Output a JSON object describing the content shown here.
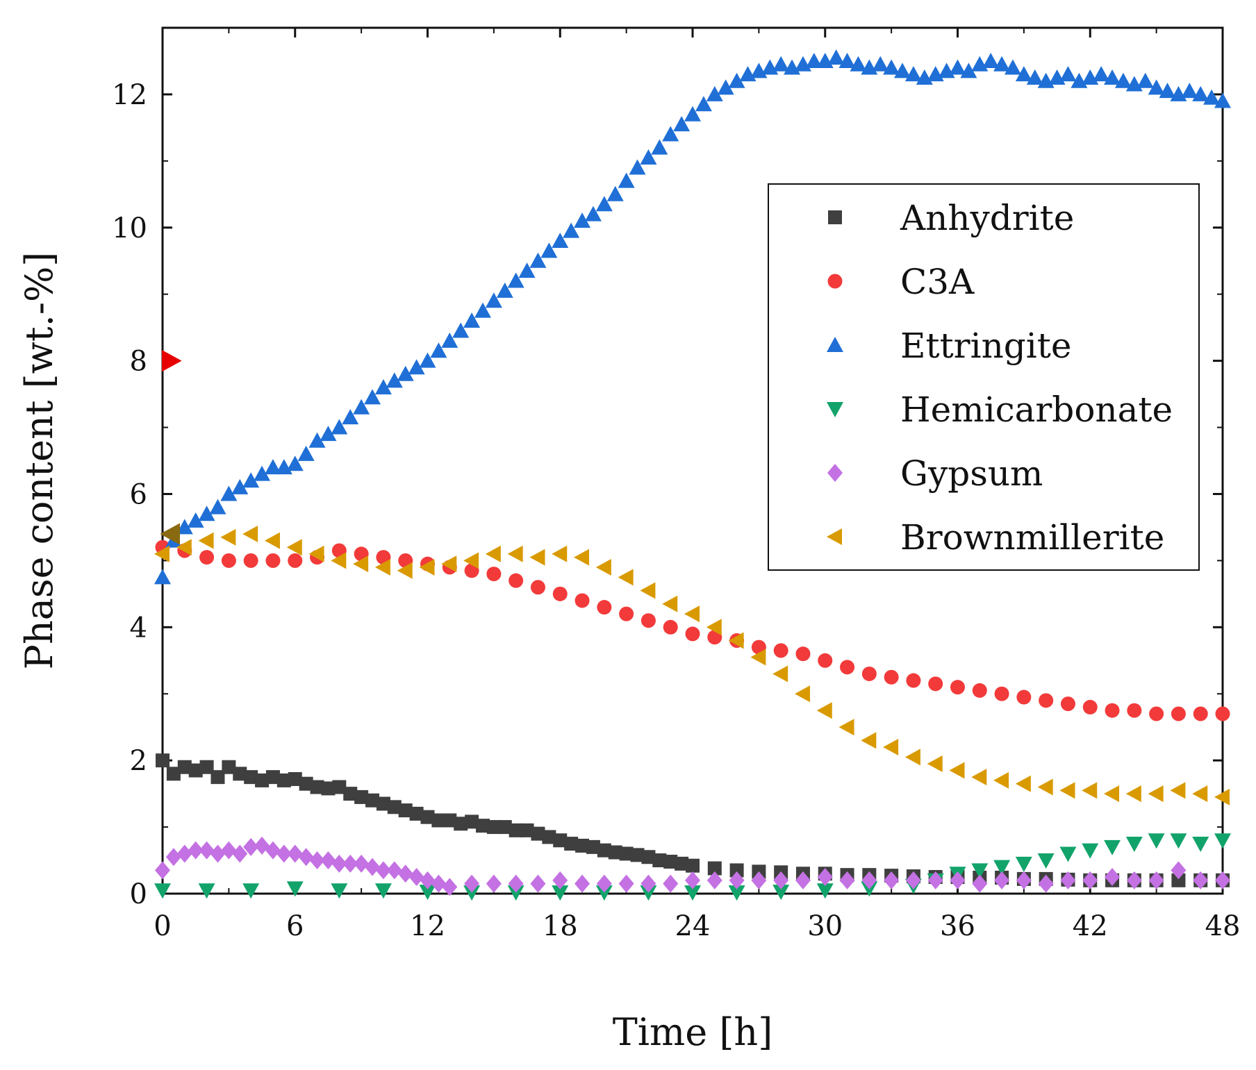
{
  "chart_data": {
    "type": "scatter",
    "title": "",
    "xlabel": "Time [h]",
    "ylabel": "Phase content [wt.-%]",
    "xlim": [
      0,
      48
    ],
    "ylim": [
      0,
      13
    ],
    "xticks": [
      "0",
      "6",
      "12",
      "18",
      "24",
      "30",
      "36",
      "42",
      "48"
    ],
    "yticks": [
      "0",
      "2",
      "4",
      "6",
      "8",
      "10",
      "12"
    ],
    "grid": false,
    "legend_position": "right",
    "series": [
      {
        "name": "Anhydrite",
        "color": "#3f3f3f",
        "marker": "square",
        "x": [
          0,
          0.5,
          1,
          1.5,
          2,
          2.5,
          3,
          3.5,
          4,
          4.5,
          5,
          5.5,
          6,
          6.5,
          7,
          7.5,
          8,
          8.5,
          9,
          9.5,
          10,
          10.5,
          11,
          11.5,
          12,
          12.5,
          13,
          13.5,
          14,
          14.5,
          15,
          15.5,
          16,
          16.5,
          17,
          17.5,
          18,
          18.5,
          19,
          19.5,
          20,
          20.5,
          21,
          21.5,
          22,
          22.5,
          23,
          23.5,
          24,
          25,
          26,
          27,
          28,
          29,
          30,
          31,
          32,
          33,
          34,
          35,
          36,
          37,
          38,
          39,
          40,
          41,
          42,
          43,
          44,
          45,
          46,
          47,
          48
        ],
        "y": [
          2.0,
          1.8,
          1.9,
          1.85,
          1.9,
          1.75,
          1.9,
          1.8,
          1.75,
          1.7,
          1.75,
          1.7,
          1.72,
          1.65,
          1.6,
          1.58,
          1.6,
          1.5,
          1.45,
          1.4,
          1.35,
          1.3,
          1.25,
          1.2,
          1.15,
          1.1,
          1.1,
          1.05,
          1.08,
          1.02,
          1.0,
          1.0,
          0.95,
          0.95,
          0.9,
          0.85,
          0.8,
          0.75,
          0.72,
          0.7,
          0.65,
          0.62,
          0.6,
          0.58,
          0.55,
          0.5,
          0.48,
          0.45,
          0.42,
          0.38,
          0.35,
          0.33,
          0.32,
          0.3,
          0.3,
          0.28,
          0.28,
          0.27,
          0.26,
          0.25,
          0.25,
          0.24,
          0.24,
          0.22,
          0.22,
          0.21,
          0.2,
          0.2,
          0.2,
          0.2,
          0.2,
          0.2,
          0.2
        ]
      },
      {
        "name": "C3A",
        "color": "#f23a3a",
        "marker": "circle",
        "x": [
          0,
          1,
          2,
          3,
          4,
          5,
          6,
          7,
          8,
          9,
          10,
          11,
          12,
          13,
          14,
          15,
          16,
          17,
          18,
          19,
          20,
          21,
          22,
          23,
          24,
          25,
          26,
          27,
          28,
          29,
          30,
          31,
          32,
          33,
          34,
          35,
          36,
          37,
          38,
          39,
          40,
          41,
          42,
          43,
          44,
          45,
          46,
          47,
          48
        ],
        "y": [
          5.2,
          5.15,
          5.05,
          5.0,
          5.0,
          5.0,
          5.0,
          5.05,
          5.15,
          5.1,
          5.05,
          5.0,
          4.95,
          4.9,
          4.85,
          4.8,
          4.7,
          4.6,
          4.5,
          4.4,
          4.3,
          4.2,
          4.1,
          4.0,
          3.9,
          3.85,
          3.8,
          3.7,
          3.65,
          3.6,
          3.5,
          3.4,
          3.3,
          3.25,
          3.2,
          3.15,
          3.1,
          3.05,
          3.0,
          2.95,
          2.9,
          2.85,
          2.8,
          2.75,
          2.75,
          2.7,
          2.7,
          2.7,
          2.7
        ]
      },
      {
        "name": "Ettringite",
        "color": "#1f6fd6",
        "marker": "triangle-up",
        "x": [
          0,
          0.5,
          1,
          1.5,
          2,
          2.5,
          3,
          3.5,
          4,
          4.5,
          5,
          5.5,
          6,
          6.5,
          7,
          7.5,
          8,
          8.5,
          9,
          9.5,
          10,
          10.5,
          11,
          11.5,
          12,
          12.5,
          13,
          13.5,
          14,
          14.5,
          15,
          15.5,
          16,
          16.5,
          17,
          17.5,
          18,
          18.5,
          19,
          19.5,
          20,
          20.5,
          21,
          21.5,
          22,
          22.5,
          23,
          23.5,
          24,
          24.5,
          25,
          25.5,
          26,
          26.5,
          27,
          27.5,
          28,
          28.5,
          29,
          29.5,
          30,
          30.5,
          31,
          31.5,
          32,
          32.5,
          33,
          33.5,
          34,
          34.5,
          35,
          35.5,
          36,
          36.5,
          37,
          37.5,
          38,
          38.5,
          39,
          39.5,
          40,
          40.5,
          41,
          41.5,
          42,
          42.5,
          43,
          43.5,
          44,
          44.5,
          45,
          45.5,
          46,
          46.5,
          47,
          47.5,
          48
        ],
        "y": [
          4.75,
          5.3,
          5.5,
          5.6,
          5.7,
          5.8,
          6.0,
          6.1,
          6.2,
          6.3,
          6.4,
          6.4,
          6.45,
          6.6,
          6.8,
          6.9,
          7.0,
          7.15,
          7.3,
          7.45,
          7.6,
          7.7,
          7.8,
          7.9,
          8.0,
          8.15,
          8.3,
          8.45,
          8.6,
          8.75,
          8.9,
          9.05,
          9.2,
          9.35,
          9.5,
          9.65,
          9.8,
          9.95,
          10.1,
          10.2,
          10.35,
          10.5,
          10.7,
          10.9,
          11.05,
          11.2,
          11.4,
          11.55,
          11.7,
          11.85,
          12.0,
          12.1,
          12.2,
          12.3,
          12.35,
          12.4,
          12.45,
          12.4,
          12.45,
          12.5,
          12.5,
          12.55,
          12.5,
          12.45,
          12.4,
          12.45,
          12.4,
          12.35,
          12.3,
          12.25,
          12.3,
          12.35,
          12.4,
          12.35,
          12.45,
          12.5,
          12.45,
          12.4,
          12.3,
          12.25,
          12.2,
          12.25,
          12.3,
          12.2,
          12.25,
          12.3,
          12.25,
          12.2,
          12.15,
          12.2,
          12.1,
          12.05,
          12.0,
          12.05,
          12.0,
          11.95,
          11.9
        ]
      },
      {
        "name": "Hemicarbonate",
        "color": "#12a36a",
        "marker": "triangle-down",
        "x": [
          0,
          2,
          4,
          6,
          8,
          10,
          12,
          14,
          16,
          18,
          20,
          22,
          24,
          26,
          28,
          30,
          32,
          34,
          35,
          36,
          37,
          38,
          39,
          40,
          41,
          42,
          43,
          44,
          45,
          46,
          47,
          48
        ],
        "y": [
          0.05,
          0.05,
          0.05,
          0.08,
          0.05,
          0.05,
          0.03,
          0.02,
          0.02,
          0.02,
          0.02,
          0.02,
          0.02,
          0.02,
          0.03,
          0.05,
          0.08,
          0.12,
          0.2,
          0.3,
          0.35,
          0.4,
          0.45,
          0.5,
          0.6,
          0.65,
          0.7,
          0.75,
          0.8,
          0.8,
          0.75,
          0.8
        ]
      },
      {
        "name": "Gypsum",
        "color": "#c471e3",
        "marker": "diamond",
        "x": [
          0,
          0.5,
          1,
          1.5,
          2,
          2.5,
          3,
          3.5,
          4,
          4.5,
          5,
          5.5,
          6,
          6.5,
          7,
          7.5,
          8,
          8.5,
          9,
          9.5,
          10,
          10.5,
          11,
          11.5,
          12,
          12.5,
          13,
          14,
          15,
          16,
          17,
          18,
          19,
          20,
          21,
          22,
          23,
          24,
          25,
          26,
          27,
          28,
          29,
          30,
          31,
          32,
          33,
          34,
          35,
          36,
          37,
          38,
          39,
          40,
          41,
          42,
          43,
          44,
          45,
          46,
          47,
          48
        ],
        "y": [
          0.35,
          0.55,
          0.6,
          0.65,
          0.65,
          0.6,
          0.65,
          0.6,
          0.7,
          0.72,
          0.65,
          0.6,
          0.6,
          0.55,
          0.5,
          0.5,
          0.45,
          0.45,
          0.45,
          0.4,
          0.35,
          0.35,
          0.3,
          0.25,
          0.2,
          0.15,
          0.1,
          0.15,
          0.15,
          0.15,
          0.15,
          0.2,
          0.15,
          0.15,
          0.15,
          0.15,
          0.15,
          0.2,
          0.2,
          0.2,
          0.2,
          0.2,
          0.2,
          0.25,
          0.2,
          0.2,
          0.2,
          0.2,
          0.2,
          0.2,
          0.15,
          0.2,
          0.2,
          0.15,
          0.2,
          0.2,
          0.25,
          0.2,
          0.2,
          0.35,
          0.2,
          0.2
        ]
      },
      {
        "name": "Brownmillerite",
        "color": "#d99a00",
        "marker": "triangle-left",
        "x": [
          0,
          1,
          2,
          3,
          4,
          5,
          6,
          7,
          8,
          9,
          10,
          11,
          12,
          13,
          14,
          15,
          16,
          17,
          18,
          19,
          20,
          21,
          22,
          23,
          24,
          25,
          26,
          27,
          28,
          29,
          30,
          31,
          32,
          33,
          34,
          35,
          36,
          37,
          38,
          39,
          40,
          41,
          42,
          43,
          44,
          45,
          46,
          47,
          48
        ],
        "y": [
          5.1,
          5.2,
          5.3,
          5.35,
          5.4,
          5.3,
          5.2,
          5.1,
          5.0,
          4.95,
          4.9,
          4.85,
          4.9,
          4.95,
          5.0,
          5.1,
          5.1,
          5.05,
          5.1,
          5.05,
          4.9,
          4.75,
          4.55,
          4.35,
          4.2,
          4.0,
          3.8,
          3.55,
          3.3,
          3.0,
          2.75,
          2.5,
          2.3,
          2.2,
          2.05,
          1.95,
          1.85,
          1.75,
          1.7,
          1.65,
          1.6,
          1.55,
          1.55,
          1.5,
          1.5,
          1.5,
          1.55,
          1.5,
          1.45
        ]
      }
    ],
    "annotations": [
      {
        "x": 0,
        "y": 8.0,
        "marker": "triangle-right",
        "color": "#e60000"
      },
      {
        "x": 0,
        "y": 5.4,
        "marker": "triangle-left",
        "color": "#8a6a10"
      }
    ]
  }
}
